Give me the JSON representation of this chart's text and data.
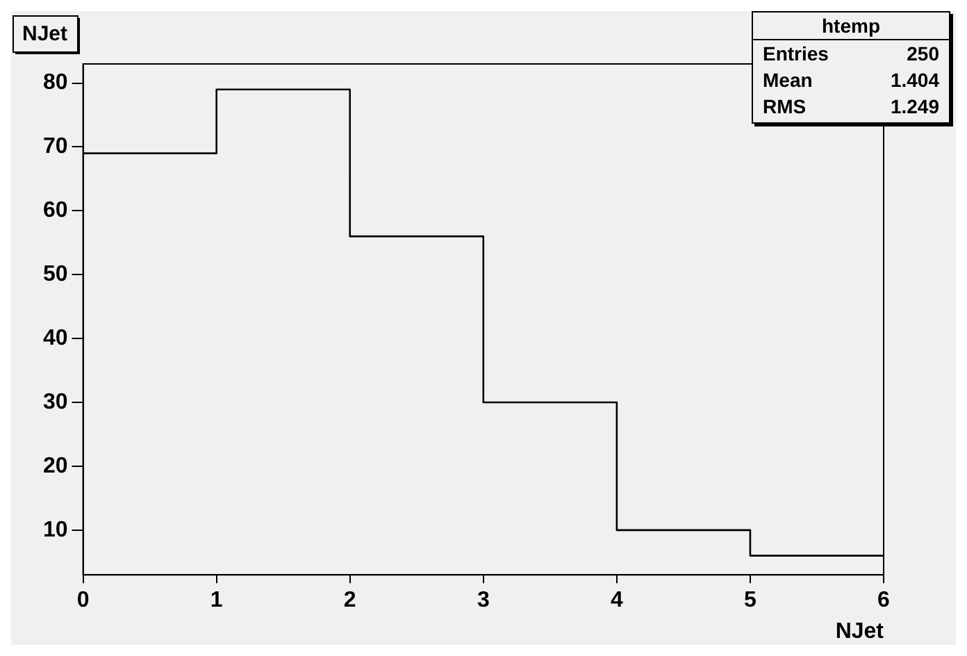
{
  "chart_data": {
    "type": "histogram",
    "title": "NJet",
    "xlabel": "NJet",
    "bins": [
      0,
      1,
      2,
      3,
      4,
      5,
      6
    ],
    "values": [
      69,
      79,
      56,
      30,
      10,
      6
    ],
    "color": "#000000",
    "xlim": [
      0,
      6
    ],
    "xticks": [
      0,
      1,
      2,
      3,
      4,
      5,
      6
    ],
    "ylim": [
      3,
      83
    ],
    "yticks": [
      10,
      20,
      30,
      40,
      50,
      60,
      70,
      80
    ],
    "grid": false,
    "legend": false,
    "annotations": [
      "htemp",
      "Entries",
      "250",
      "Mean",
      "1.404",
      "RMS",
      "1.249"
    ]
  }
}
